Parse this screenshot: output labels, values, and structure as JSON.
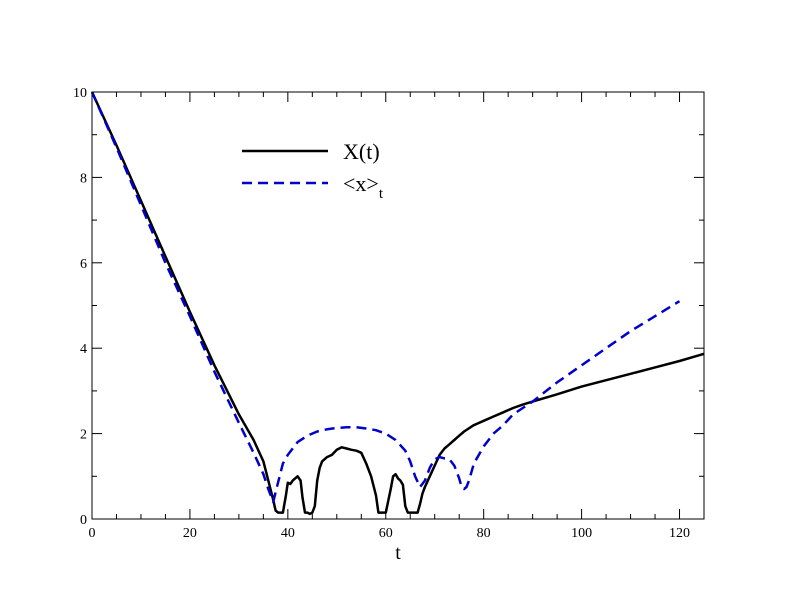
{
  "chart_data": {
    "type": "line",
    "title": "",
    "xlabel": "t",
    "ylabel": "",
    "xlim": [
      0,
      125
    ],
    "ylim": [
      0,
      10
    ],
    "x_ticks": [
      0,
      20,
      40,
      60,
      80,
      100,
      120
    ],
    "y_ticks": [
      0,
      2,
      4,
      6,
      8,
      10
    ],
    "x_tick_labels": [
      "0",
      "20",
      "40",
      "60",
      "80",
      "100",
      "120"
    ],
    "y_tick_labels": [
      "0",
      "2",
      "4",
      "6",
      "8",
      "10"
    ],
    "grid": false,
    "legend_position": "top-center",
    "series": [
      {
        "name": "X(t)",
        "style": "solid",
        "color": "#000000",
        "x": [
          0,
          5,
          10,
          15,
          20,
          25,
          30,
          33,
          35,
          36,
          37,
          37.5,
          38,
          39,
          39.6,
          40,
          40.5,
          41,
          42,
          42.6,
          43,
          43.5,
          44,
          44.5,
          45,
          45.5,
          46,
          46.5,
          47,
          48,
          49,
          50,
          51,
          52,
          53,
          54,
          55,
          56,
          57,
          58,
          58.5,
          59,
          59.5,
          60,
          61,
          61.5,
          62,
          62.5,
          63,
          63.5,
          64,
          64.5,
          65,
          65.5,
          66,
          66.5,
          67,
          67.5,
          68,
          69,
          70,
          71,
          72,
          73,
          74,
          75,
          76,
          78,
          80,
          82,
          84,
          86,
          88,
          90,
          95,
          100,
          105,
          110,
          115,
          120,
          125
        ],
        "y": [
          10,
          8.75,
          7.45,
          6.15,
          4.85,
          3.6,
          2.45,
          1.85,
          1.35,
          0.9,
          0.45,
          0.2,
          0.15,
          0.15,
          0.55,
          0.85,
          0.82,
          0.9,
          1.0,
          0.9,
          0.5,
          0.15,
          0.15,
          0.12,
          0.15,
          0.3,
          0.9,
          1.2,
          1.35,
          1.45,
          1.5,
          1.62,
          1.68,
          1.65,
          1.62,
          1.6,
          1.55,
          1.3,
          1.0,
          0.55,
          0.15,
          0.15,
          0.15,
          0.15,
          0.7,
          1.0,
          1.05,
          0.95,
          0.9,
          0.8,
          0.3,
          0.15,
          0.15,
          0.15,
          0.15,
          0.15,
          0.35,
          0.6,
          0.75,
          1.0,
          1.25,
          1.5,
          1.65,
          1.75,
          1.85,
          1.95,
          2.05,
          2.2,
          2.3,
          2.4,
          2.5,
          2.6,
          2.68,
          2.75,
          2.92,
          3.1,
          3.25,
          3.4,
          3.55,
          3.7,
          3.87
        ]
      },
      {
        "name": "<x>_t",
        "style": "dashed",
        "color": "#0000cc",
        "x": [
          0,
          5,
          10,
          15,
          20,
          25,
          30,
          33,
          35,
          36,
          37,
          38,
          39,
          40,
          42,
          44,
          46,
          48,
          50,
          52,
          54,
          56,
          58,
          60,
          62,
          64,
          65,
          66,
          67,
          68,
          69,
          70,
          71,
          72,
          73,
          74,
          75,
          75.5,
          76,
          76.5,
          77,
          78,
          80,
          82,
          84,
          86,
          88,
          90,
          95,
          100,
          105,
          110,
          115,
          120
        ],
        "y": [
          10,
          8.7,
          7.35,
          6.0,
          4.75,
          3.45,
          2.25,
          1.55,
          1.05,
          0.7,
          0.4,
          0.85,
          1.3,
          1.5,
          1.8,
          1.95,
          2.05,
          2.1,
          2.13,
          2.15,
          2.15,
          2.12,
          2.08,
          2.0,
          1.85,
          1.6,
          1.35,
          1.0,
          0.75,
          0.9,
          1.2,
          1.4,
          1.45,
          1.42,
          1.4,
          1.25,
          0.95,
          0.75,
          0.7,
          0.75,
          0.9,
          1.3,
          1.7,
          2.0,
          2.2,
          2.45,
          2.6,
          2.75,
          3.2,
          3.6,
          4.0,
          4.4,
          4.75,
          5.1
        ]
      }
    ]
  }
}
